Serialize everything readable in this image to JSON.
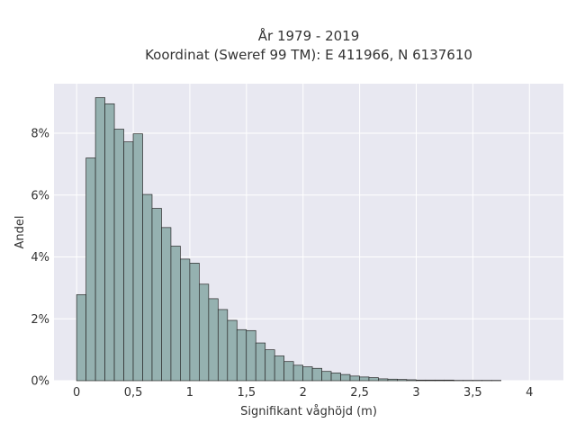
{
  "chart_data": {
    "type": "bar",
    "title": "År 1979 - 2019",
    "subtitle": "Koordinat (Sweref 99 TM): E 411966, N 6137610",
    "xlabel": "Signifikant våghöjd (m)",
    "ylabel": "Andel",
    "xlim": [
      -0.2,
      4.3
    ],
    "ylim": [
      0,
      9.6
    ],
    "x_ticks": [
      0,
      0.5,
      1,
      1.5,
      2,
      2.5,
      3,
      3.5,
      4
    ],
    "x_tick_labels": [
      "0",
      "0,5",
      "1",
      "1,5",
      "2",
      "2,5",
      "3",
      "3,5",
      "4"
    ],
    "y_ticks": [
      0,
      2,
      4,
      6,
      8
    ],
    "y_tick_labels": [
      "0%",
      "2%",
      "4%",
      "6%",
      "8%"
    ],
    "grid": true,
    "bin_width": 0.0833,
    "bin_start": 0,
    "values": [
      2.78,
      7.2,
      9.15,
      8.95,
      8.13,
      7.72,
      7.98,
      6.02,
      5.57,
      4.95,
      4.35,
      3.93,
      3.8,
      3.12,
      2.65,
      2.3,
      1.95,
      1.65,
      1.62,
      1.22,
      1.0,
      0.8,
      0.62,
      0.5,
      0.45,
      0.4,
      0.3,
      0.25,
      0.2,
      0.15,
      0.12,
      0.1,
      0.06,
      0.05,
      0.04,
      0.03,
      0.02,
      0.02,
      0.02,
      0.02,
      0.01,
      0.01,
      0.01,
      0.01,
      0.01
    ]
  }
}
